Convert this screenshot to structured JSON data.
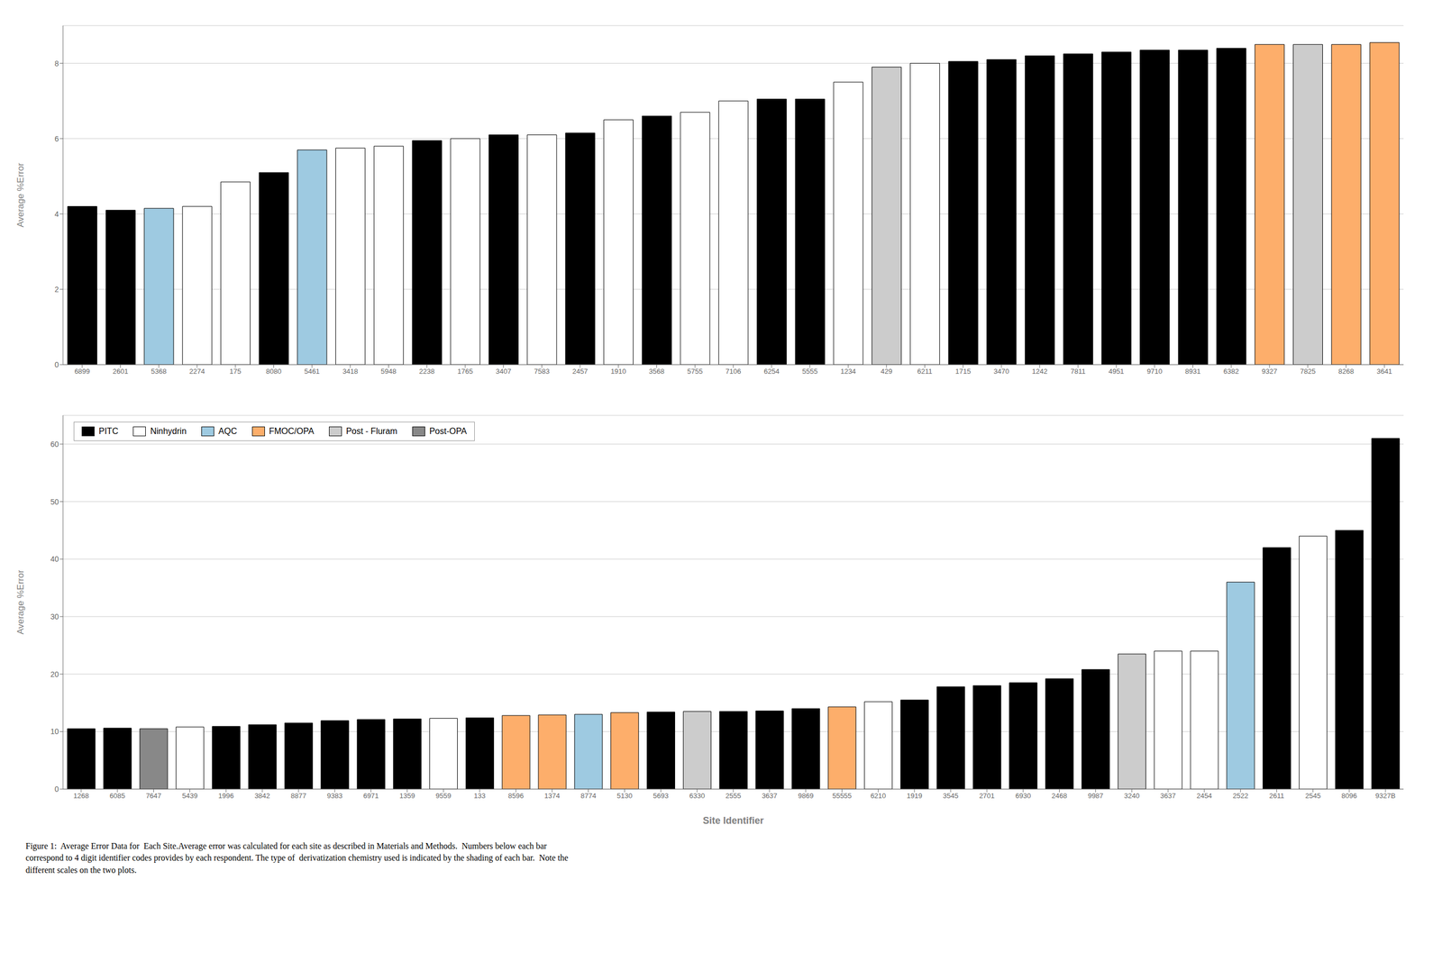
{
  "chart_data": [
    {
      "type": "bar",
      "categories": [
        "6899",
        "2601",
        "5368",
        "2274",
        "175",
        "8080",
        "5461",
        "3418",
        "5948",
        "2238",
        "1765",
        "3407",
        "7583",
        "2457",
        "1910",
        "3568",
        "5755",
        "7106",
        "6254",
        "5555",
        "1234",
        "429",
        "6211",
        "1715",
        "3470",
        "1242",
        "7811",
        "4951",
        "9710",
        "8931",
        "6382",
        "9327",
        "7825",
        "8268",
        "3641"
      ],
      "values": [
        4.2,
        4.1,
        4.15,
        4.2,
        4.85,
        5.1,
        5.7,
        5.75,
        5.8,
        5.95,
        6.0,
        6.1,
        6.1,
        6.15,
        6.5,
        6.6,
        6.7,
        7.0,
        7.05,
        7.05,
        7.5,
        7.9,
        8.0,
        8.05,
        8.1,
        8.2,
        8.25,
        8.3,
        8.35,
        8.35,
        8.4,
        8.5,
        8.5,
        8.5,
        8.55
      ],
      "colors": [
        "#000000",
        "#000000",
        "#9ecae1",
        "#ffffff",
        "#ffffff",
        "#000000",
        "#9ecae1",
        "#ffffff",
        "#ffffff",
        "#000000",
        "#ffffff",
        "#000000",
        "#ffffff",
        "#000000",
        "#ffffff",
        "#000000",
        "#ffffff",
        "#ffffff",
        "#000000",
        "#000000",
        "#ffffff",
        "#cccccc",
        "#ffffff",
        "#000000",
        "#000000",
        "#000000",
        "#000000",
        "#000000",
        "#000000",
        "#000000",
        "#000000",
        "#fdae6b",
        "#cccccc",
        "#fdae6b",
        "#fdae6b"
      ],
      "ylabel": "Average %Error",
      "ylim": [
        0,
        9
      ],
      "yticks": [
        0,
        2,
        4,
        6,
        8
      ],
      "grid": true
    },
    {
      "type": "bar",
      "xlabel": "Site Identifier",
      "ylabel": "Average %Error",
      "categories": [
        "1268",
        "6085",
        "7647",
        "5439",
        "1996",
        "3842",
        "8877",
        "9383",
        "6971",
        "1359",
        "9559",
        "133",
        "8596",
        "1374",
        "8774",
        "5130",
        "5693",
        "6330",
        "2555",
        "3637",
        "9869",
        "55555",
        "6210",
        "1919",
        "3545",
        "2701",
        "6930",
        "2468",
        "9987",
        "3240",
        "3637",
        "2454",
        "2522",
        "2611",
        "2545",
        "8096",
        "9327B"
      ],
      "series": [
        {
          "name": "PITC",
          "color": "#000000",
          "values": [
            10.5,
            10.6,
            null,
            null,
            10.9,
            11.2,
            11.5,
            11.9,
            12.1,
            12.2,
            null,
            12.4,
            null,
            null,
            null,
            null,
            13.4,
            null,
            13.5,
            13.6,
            14.0,
            null,
            null,
            15.5,
            17.8,
            18.0,
            18.5,
            19.2,
            20.8,
            null,
            null,
            null,
            null,
            42.0,
            null,
            45.0,
            61.0
          ]
        },
        {
          "name": "Ninhydrin",
          "color": "#ffffff",
          "values": [
            null,
            null,
            null,
            10.8,
            null,
            null,
            null,
            null,
            null,
            null,
            12.3,
            null,
            null,
            null,
            null,
            null,
            null,
            null,
            null,
            null,
            null,
            null,
            15.2,
            null,
            null,
            null,
            null,
            null,
            null,
            null,
            24.0,
            24.0,
            null,
            null,
            44.0,
            null,
            null
          ]
        },
        {
          "name": "AQC",
          "color": "#9ecae1",
          "values": [
            null,
            null,
            null,
            null,
            null,
            null,
            null,
            null,
            null,
            null,
            null,
            null,
            null,
            null,
            13.0,
            null,
            null,
            null,
            null,
            null,
            null,
            null,
            null,
            null,
            null,
            null,
            null,
            null,
            null,
            null,
            null,
            null,
            36.0,
            null,
            null,
            null,
            null
          ]
        },
        {
          "name": "FMOC/OPA",
          "color": "#fdae6b",
          "values": [
            null,
            null,
            null,
            null,
            null,
            null,
            null,
            null,
            null,
            null,
            null,
            null,
            12.8,
            12.9,
            null,
            13.3,
            null,
            null,
            null,
            null,
            null,
            14.3,
            null,
            null,
            null,
            null,
            null,
            null,
            null,
            null,
            null,
            null,
            null,
            null,
            null,
            null,
            null
          ]
        },
        {
          "name": "Post - Fluram",
          "color": "#cccccc",
          "values": [
            null,
            null,
            null,
            null,
            null,
            null,
            null,
            null,
            null,
            null,
            null,
            null,
            null,
            null,
            null,
            null,
            null,
            13.5,
            null,
            null,
            null,
            null,
            null,
            null,
            null,
            null,
            null,
            null,
            null,
            23.5,
            null,
            null,
            null,
            null,
            null,
            null,
            null
          ]
        },
        {
          "name": "Post-OPA",
          "color": "#888888",
          "values": [
            null,
            null,
            10.5,
            null,
            null,
            null,
            null,
            null,
            null,
            null,
            null,
            null,
            null,
            null,
            null,
            null,
            null,
            null,
            null,
            null,
            null,
            null,
            null,
            null,
            null,
            null,
            null,
            null,
            null,
            null,
            null,
            null,
            null,
            null,
            null,
            null,
            null
          ]
        }
      ],
      "stacked": true,
      "ylim": [
        0,
        65
      ],
      "yticks": [
        0,
        10,
        20,
        30,
        40,
        50,
        60
      ],
      "grid": true,
      "legend": "upper left",
      "annotations": [
        "Figure 1:  Average Error Data for  Each Site.Average error was calculated for each site as described in Materials and Methods.  Numbers below each bar\ncorrespond to 4 digit identifier codes provides by each respondent. The type of  derivatization chemistry used is indicated by the shading of each bar.  Note the\ndifferent scales on the two plots."
      ]
    }
  ]
}
